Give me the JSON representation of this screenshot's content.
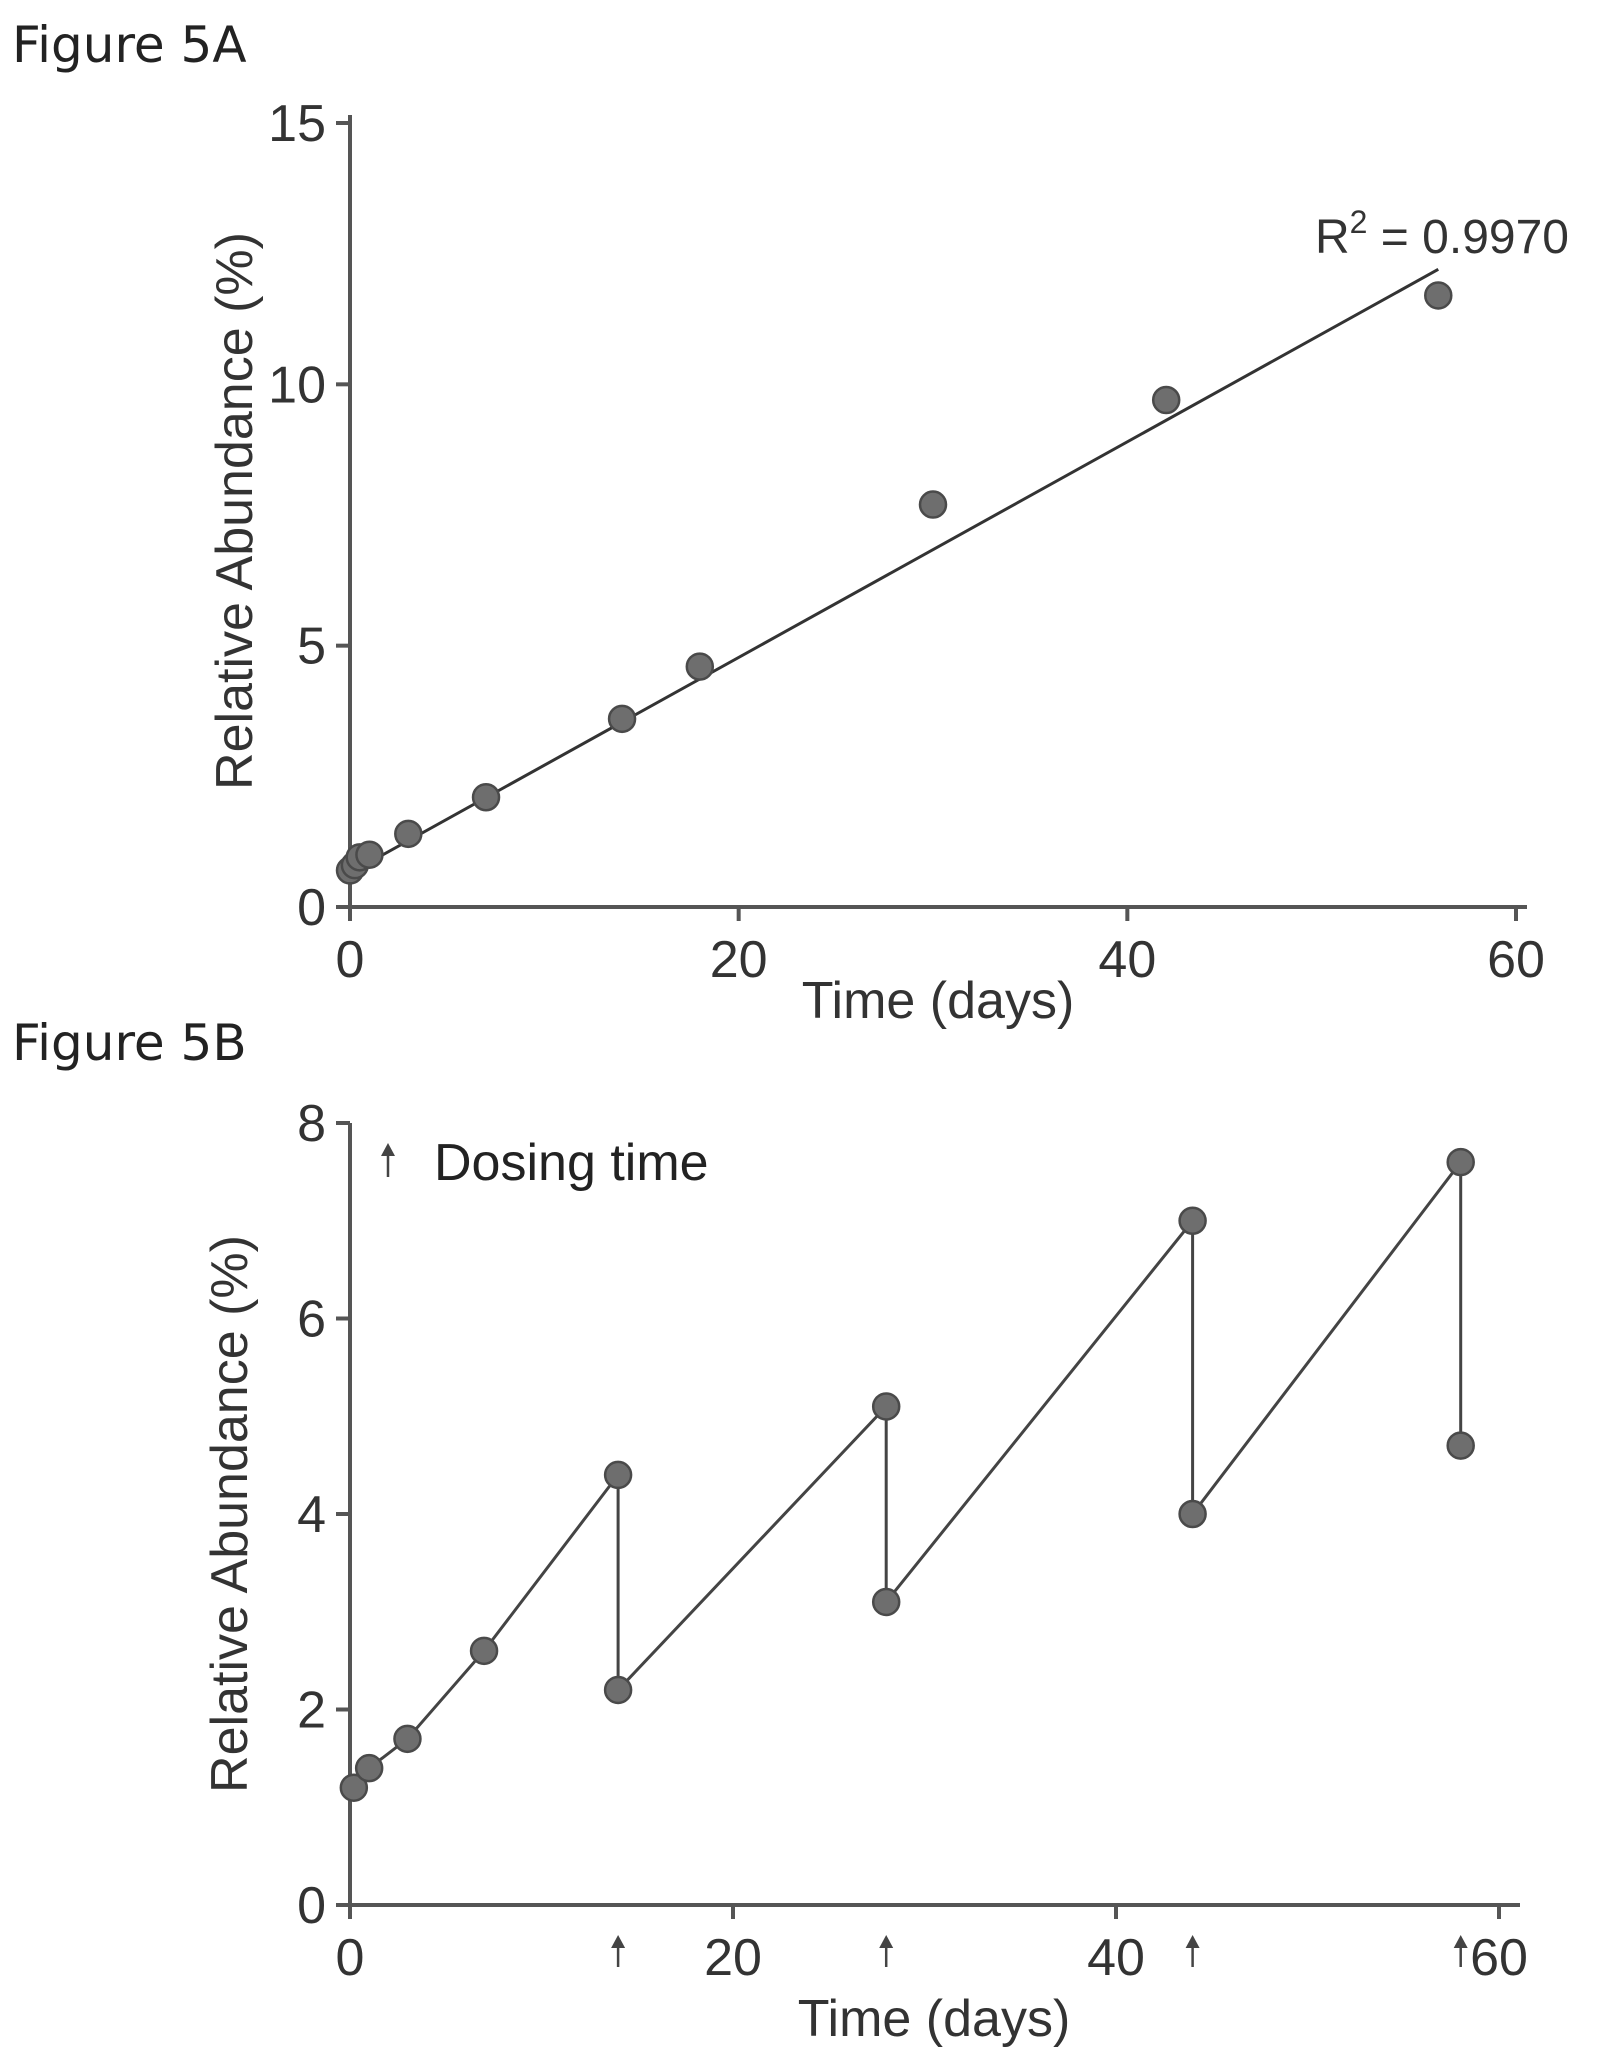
{
  "chart_data": [
    {
      "figure_label": "Figure 5A",
      "type": "scatter",
      "xlabel": "Time (days)",
      "ylabel": "Relative Abundance (%)",
      "xlim": [
        0,
        60
      ],
      "ylim": [
        0,
        15
      ],
      "xticks": [
        "0",
        "20",
        "40",
        "60"
      ],
      "yticks": [
        "0",
        "5",
        "10",
        "15"
      ],
      "grid": false,
      "series": [
        {
          "x": [
            0,
            0.25,
            0.5,
            1,
            3,
            7,
            14,
            18,
            30,
            42,
            56
          ],
          "y": [
            0.7,
            0.8,
            0.95,
            1.0,
            1.4,
            2.1,
            3.6,
            4.6,
            7.7,
            9.7,
            11.7
          ]
        }
      ],
      "fit": {
        "x": [
          0,
          56
        ],
        "y": [
          0.65,
          12.2
        ]
      },
      "annotation": {
        "text_main": "R",
        "text_sup": "2",
        "text_rest": " = 0.9970"
      }
    },
    {
      "figure_label": "Figure 5B",
      "type": "line",
      "xlabel": "Time (days)",
      "ylabel": "Relative Abundance (%)",
      "xlim": [
        0,
        60
      ],
      "ylim": [
        0,
        8
      ],
      "xticks": [
        "0",
        "20",
        "40",
        "60"
      ],
      "yticks": [
        "0",
        "2",
        "4",
        "6",
        "8"
      ],
      "grid": false,
      "series": [
        {
          "x": [
            0.2,
            1,
            3,
            7,
            14,
            14,
            28,
            28,
            44,
            44,
            58,
            58
          ],
          "y": [
            1.2,
            1.4,
            1.7,
            2.6,
            4.4,
            2.2,
            5.1,
            3.1,
            7.0,
            4.0,
            7.6,
            4.7
          ]
        }
      ],
      "legend": {
        "text": "Dosing time",
        "marker": "up-arrow",
        "position": "top-left"
      },
      "dosing_times": [
        14,
        28,
        44,
        58
      ]
    }
  ]
}
